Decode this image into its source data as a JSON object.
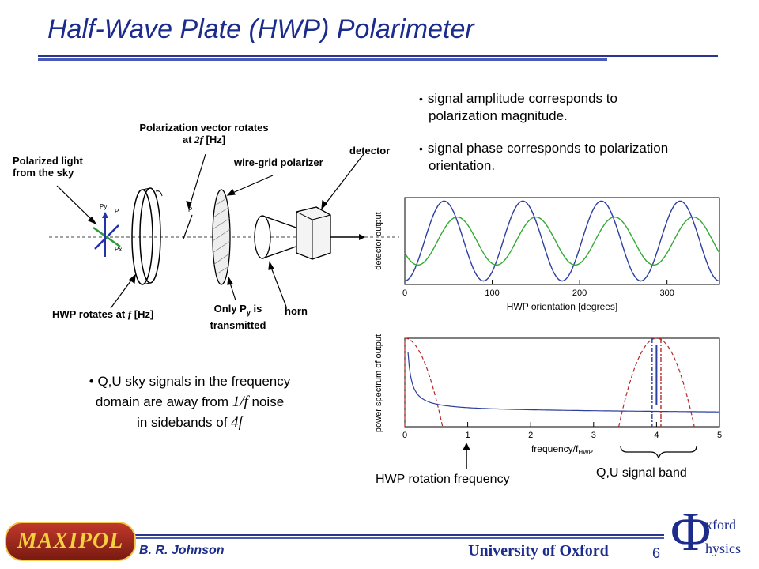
{
  "slide": {
    "title": "Half-Wave Plate (HWP) Polarimeter",
    "bullets_top": [
      {
        "line1": "signal amplitude corresponds to",
        "line2": "polarization magnitude."
      },
      {
        "line1": "signal phase corresponds to polarization",
        "line2": "orientation."
      }
    ],
    "left_bullet": {
      "line1": "Q,U sky signals in the frequency",
      "line2_pre": "domain are away from ",
      "line2_em": "1/f",
      "line2_post": "  noise",
      "line3_pre": "in sidebands of ",
      "line3_em": "4f"
    },
    "captions": {
      "hwp_rotation": "HWP rotation frequency",
      "qu_band": "Q,U signal band"
    },
    "footer": {
      "author": "B. R. Johnson",
      "university": "University of Oxford",
      "page": "6",
      "logo_left": "MAXIPOL",
      "logo_right_symbol": "Φ",
      "logo_right_line1": "xford",
      "logo_right_line2": "hysics"
    }
  },
  "apparatus": {
    "sky": {
      "line1": "Polarized light",
      "line2": "from the sky"
    },
    "pol_vec": {
      "line1": "Polarization vector rotates",
      "line2_pre": "at ",
      "line2_em": "2f",
      "line2_post": " [Hz]"
    },
    "grid": "wire-grid polarizer",
    "detector": "detector",
    "hwp": {
      "pre": "HWP rotates at ",
      "em": "f",
      "post": " [Hz]"
    },
    "py": {
      "line1": "Only P",
      "sub": "y",
      "line1_post": " is",
      "line2": "transmitted"
    },
    "horn": "horn",
    "vec_labels": {
      "py": "Py",
      "p": "P",
      "px": "Px",
      "p2": "P"
    }
  },
  "chart_data": [
    {
      "type": "line",
      "xlabel": "HWP orientation [degrees]",
      "ylabel": "detector output",
      "xlim": [
        0,
        360
      ],
      "xticks": [
        0,
        100,
        200,
        300
      ],
      "series": [
        {
          "color": "#2c3ea0",
          "amplitude": 1.0,
          "period_deg": 90,
          "phase_deg": 0
        },
        {
          "color": "#33aa33",
          "amplitude": 0.6,
          "period_deg": 90,
          "phase_deg": 15
        }
      ]
    },
    {
      "type": "line",
      "xlabel": "frequency/f",
      "xlabel_sub": "HWP",
      "ylabel": "power spectrum of output",
      "xlim": [
        0,
        5
      ],
      "xticks": [
        0,
        1,
        2,
        3,
        4,
        5
      ],
      "series": [
        {
          "color": "#2c3ea0",
          "description": "1/f noise",
          "x": [
            0.05,
            0.2,
            0.5,
            1,
            2,
            3,
            4,
            5
          ],
          "y": [
            1.0,
            0.45,
            0.3,
            0.24,
            0.2,
            0.19,
            0.18,
            0.17
          ]
        }
      ],
      "windows": [
        {
          "color": "#b52a2a",
          "center": 0.0,
          "halfwidth": 0.6
        },
        {
          "color": "#b52a2a",
          "center": 4.0,
          "halfwidth": 0.6
        }
      ],
      "markers": [
        {
          "x": 3.93,
          "color": "#2c3ea0"
        },
        {
          "x": 4.07,
          "color": "#b52a2a"
        }
      ]
    }
  ]
}
